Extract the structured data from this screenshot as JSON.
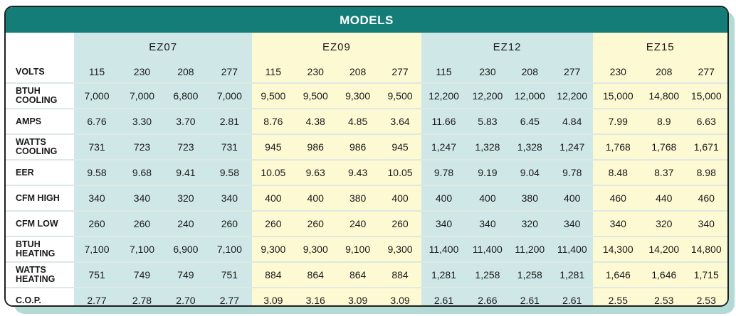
{
  "title": "MODELS",
  "models": [
    "EZ07",
    "EZ09",
    "EZ12",
    "EZ15"
  ],
  "volts_label": "VOLTS",
  "volts": [
    [
      "115",
      "230",
      "208",
      "277"
    ],
    [
      "115",
      "230",
      "208",
      "277"
    ],
    [
      "115",
      "230",
      "208",
      "277"
    ],
    [
      "230",
      "208",
      "277"
    ]
  ],
  "rows": [
    {
      "label": [
        "BTUH",
        "COOLING"
      ],
      "values": [
        [
          "7,000",
          "7,000",
          "6,800",
          "7,000"
        ],
        [
          "9,500",
          "9,500",
          "9,300",
          "9,500"
        ],
        [
          "12,200",
          "12,200",
          "12,000",
          "12,200"
        ],
        [
          "15,000",
          "14,800",
          "15,000"
        ]
      ]
    },
    {
      "label": [
        "AMPS"
      ],
      "values": [
        [
          "6.76",
          "3.30",
          "3.70",
          "2.81"
        ],
        [
          "8.76",
          "4.38",
          "4.85",
          "3.64"
        ],
        [
          "11.66",
          "5.83",
          "6.45",
          "4.84"
        ],
        [
          "7.99",
          "8.9",
          "6.63"
        ]
      ]
    },
    {
      "label": [
        "WATTS",
        "COOLING"
      ],
      "values": [
        [
          "731",
          "723",
          "723",
          "731"
        ],
        [
          "945",
          "986",
          "986",
          "945"
        ],
        [
          "1,247",
          "1,328",
          "1,328",
          "1,247"
        ],
        [
          "1,768",
          "1,768",
          "1,671"
        ]
      ]
    },
    {
      "label": [
        "EER"
      ],
      "values": [
        [
          "9.58",
          "9.68",
          "9.41",
          "9.58"
        ],
        [
          "10.05",
          "9.63",
          "9.43",
          "10.05"
        ],
        [
          "9.78",
          "9.19",
          "9.04",
          "9.78"
        ],
        [
          "8.48",
          "8.37",
          "8.98"
        ]
      ]
    },
    {
      "label": [
        "CFM HIGH"
      ],
      "values": [
        [
          "340",
          "340",
          "320",
          "340"
        ],
        [
          "400",
          "400",
          "380",
          "400"
        ],
        [
          "400",
          "400",
          "380",
          "400"
        ],
        [
          "460",
          "440",
          "460"
        ]
      ]
    },
    {
      "label": [
        "CFM LOW"
      ],
      "values": [
        [
          "260",
          "260",
          "240",
          "260"
        ],
        [
          "260",
          "260",
          "240",
          "260"
        ],
        [
          "340",
          "340",
          "320",
          "340"
        ],
        [
          "340",
          "320",
          "340"
        ]
      ]
    },
    {
      "label": [
        "BTUH",
        "HEATING"
      ],
      "values": [
        [
          "7,100",
          "7,100",
          "6,900",
          "7,100"
        ],
        [
          "9,300",
          "9,300",
          "9,100",
          "9,300"
        ],
        [
          "11,400",
          "11,400",
          "11,200",
          "11,400"
        ],
        [
          "14,300",
          "14,200",
          "14,800"
        ]
      ]
    },
    {
      "label": [
        "WATTS",
        "HEATING"
      ],
      "values": [
        [
          "751",
          "749",
          "749",
          "751"
        ],
        [
          "884",
          "864",
          "864",
          "884"
        ],
        [
          "1,281",
          "1,258",
          "1,258",
          "1,281"
        ],
        [
          "1,646",
          "1,646",
          "1,715"
        ]
      ]
    },
    {
      "label": [
        "C.O.P."
      ],
      "values": [
        [
          "2.77",
          "2.78",
          "2.70",
          "2.77"
        ],
        [
          "3.09",
          "3.16",
          "3.09",
          "3.09"
        ],
        [
          "2.61",
          "2.66",
          "2.61",
          "2.61"
        ],
        [
          "2.55",
          "2.53",
          "2.53"
        ]
      ]
    }
  ],
  "colors": {
    "header": "#157d77",
    "group_a": "#cfe8e7",
    "group_b": "#fdf9d2",
    "shadow": "#b4dad6"
  }
}
